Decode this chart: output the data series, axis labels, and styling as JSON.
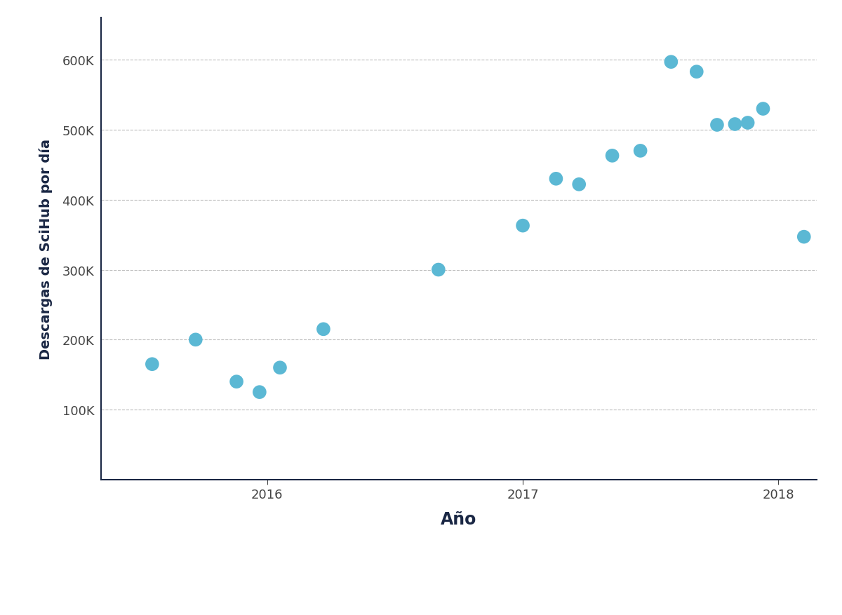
{
  "x": [
    2015.55,
    2015.72,
    2015.88,
    2015.97,
    2016.05,
    2016.22,
    2016.67,
    2017.0,
    2017.13,
    2017.22,
    2017.35,
    2017.46,
    2017.58,
    2017.68,
    2017.76,
    2017.83,
    2017.88,
    2017.94,
    2018.1
  ],
  "y": [
    165000,
    200000,
    140000,
    125000,
    160000,
    215000,
    300000,
    363000,
    430000,
    422000,
    463000,
    470000,
    597000,
    583000,
    507000,
    508000,
    510000,
    530000,
    347000
  ],
  "dot_color": "#5BB8D4",
  "dot_size": 200,
  "xlabel": "Año",
  "ylabel": "Descargas de SciHub por día",
  "xlim": [
    2015.35,
    2018.15
  ],
  "ylim": [
    0,
    660000
  ],
  "yticks": [
    0,
    100000,
    200000,
    300000,
    400000,
    500000,
    600000
  ],
  "ytick_labels": [
    "",
    "100K",
    "200K",
    "300K",
    "400K",
    "500K",
    "600K"
  ],
  "xtick_positions": [
    2016,
    2017,
    2018
  ],
  "xtick_labels": [
    "2016",
    "2017",
    "2018"
  ],
  "grid_color": "#BBBBBB",
  "spine_color": "#1a2744",
  "axis_label_color": "#1a2744",
  "tick_label_color": "#444444",
  "background_color": "#ffffff",
  "xlabel_fontsize": 17,
  "ylabel_fontsize": 14,
  "tick_fontsize": 13,
  "xlabel_fontweight": "bold",
  "ylabel_fontweight": "bold"
}
